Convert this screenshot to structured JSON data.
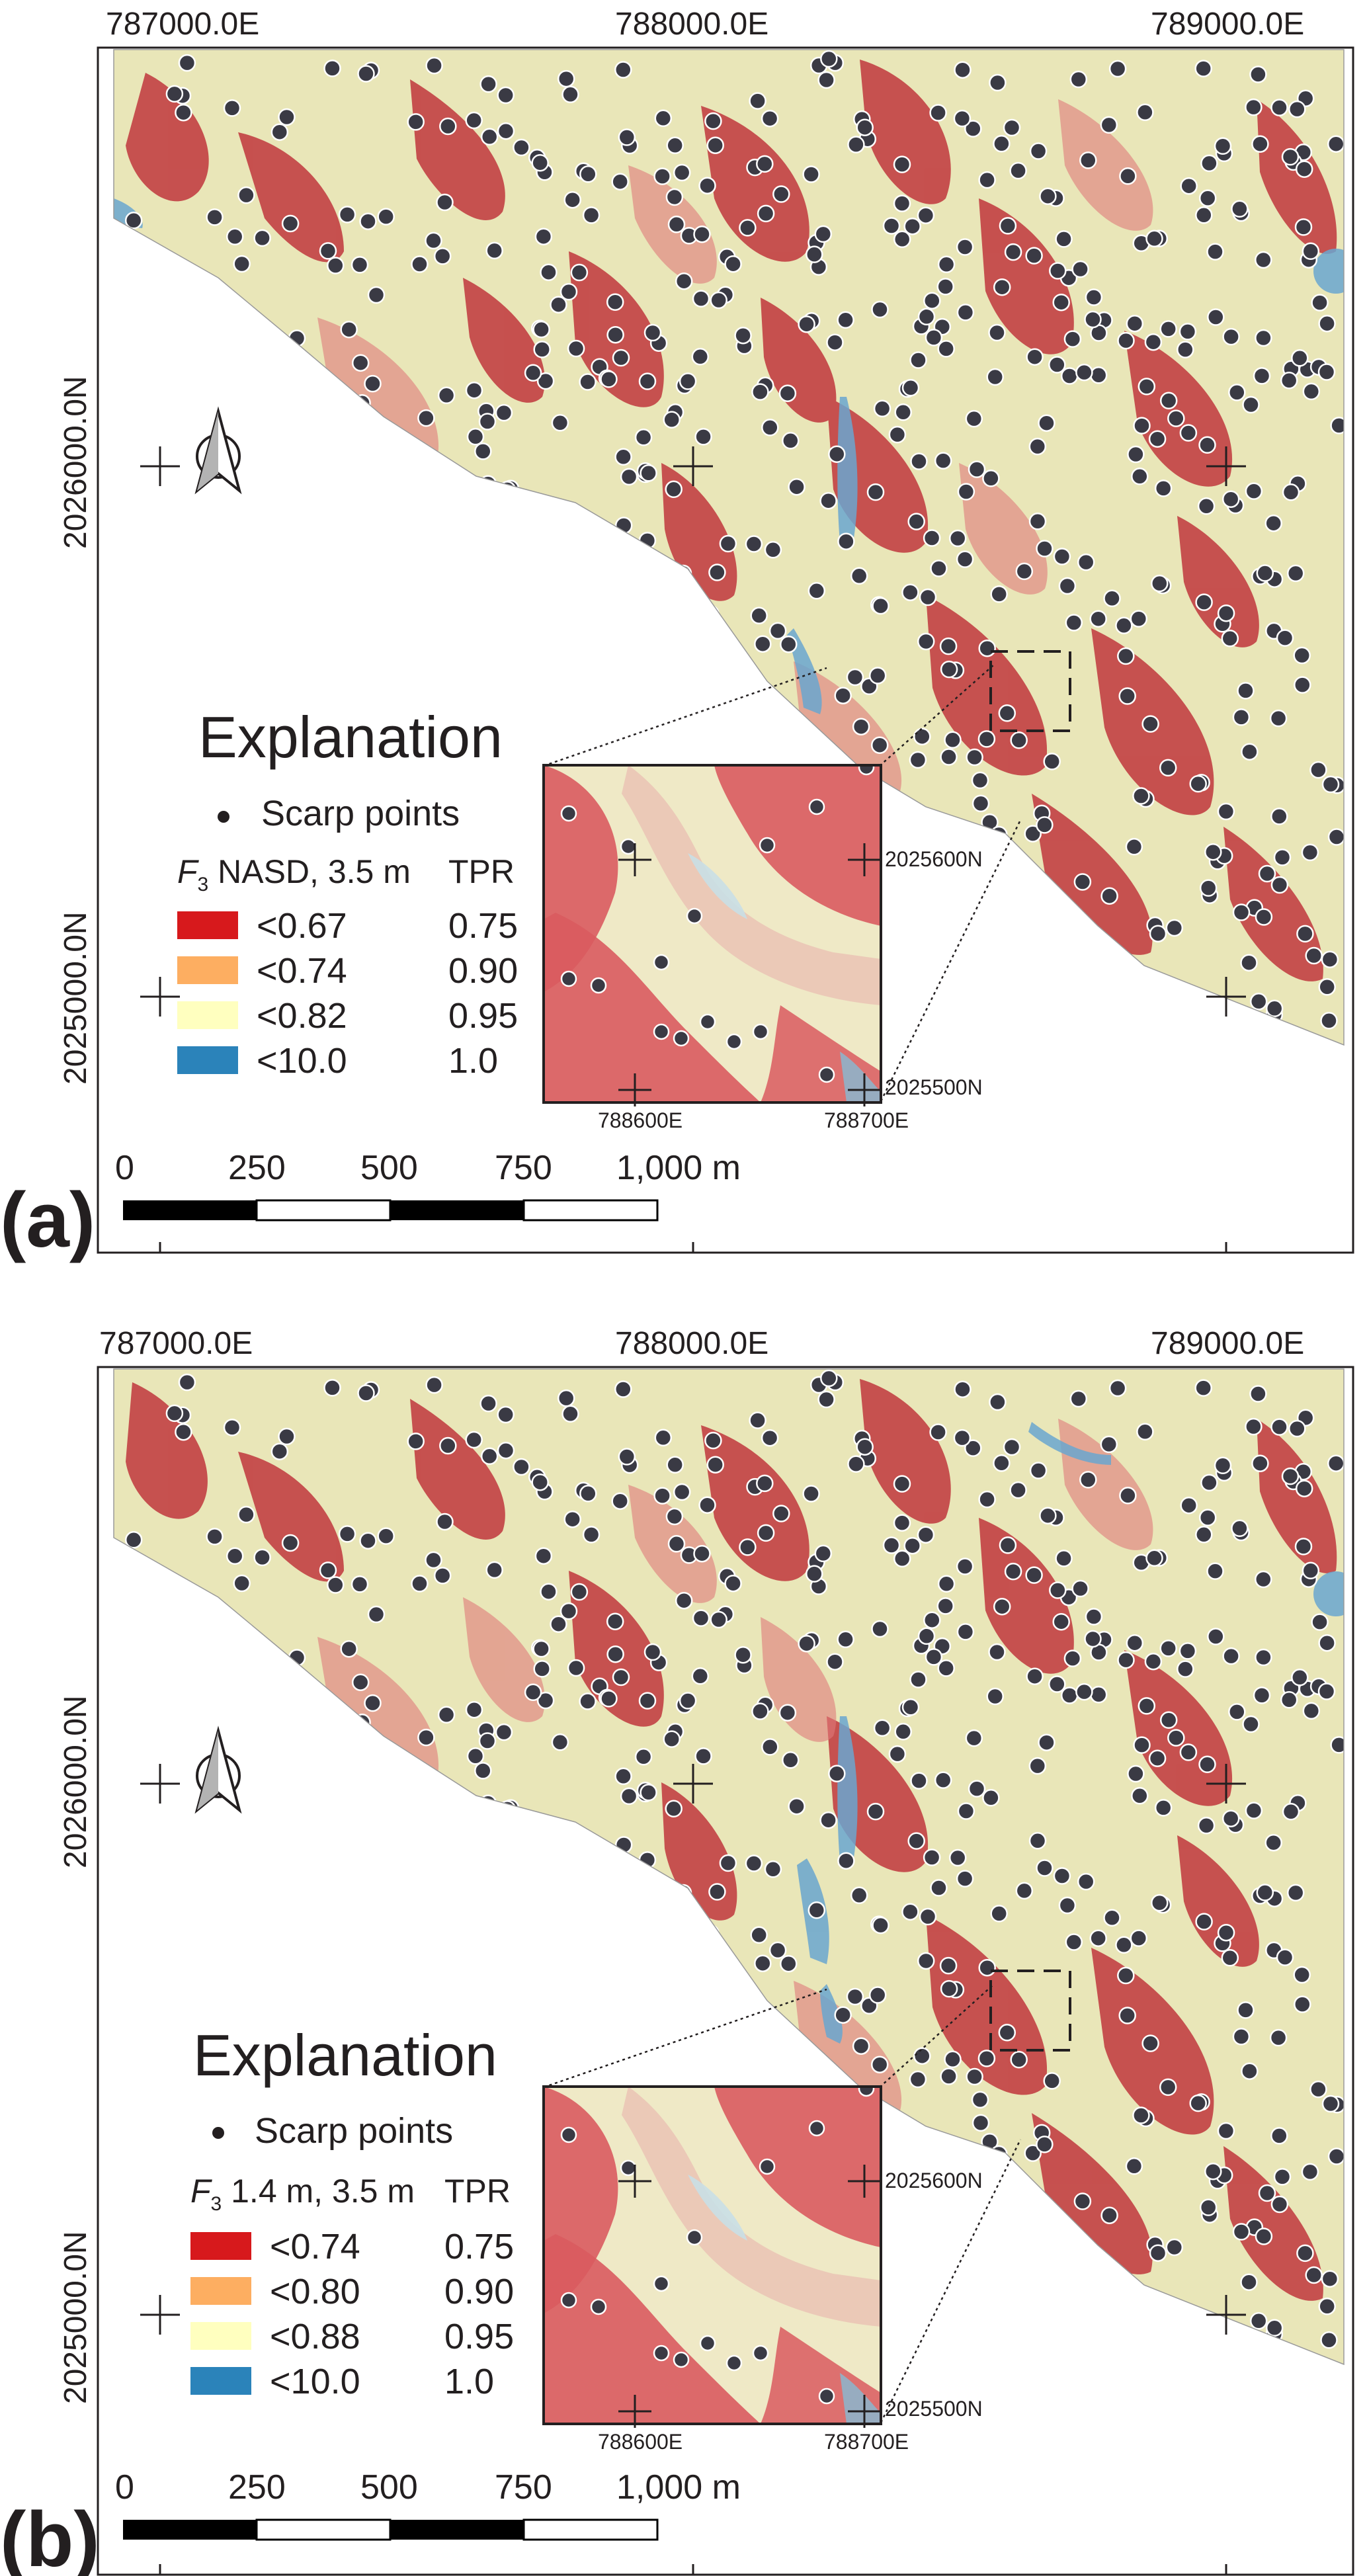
{
  "panels": [
    {
      "id": "a",
      "panel_label": "(a)",
      "top_ticks": [
        "787000.0E",
        "788000.0E",
        "789000.0E"
      ],
      "left_ticks": [
        "2026000.0N",
        "2025000.0N"
      ],
      "explanation": {
        "title": "Explanation",
        "scarp_label": "Scarp points",
        "header_f": "F",
        "header_sub": "3",
        "header_rest": " NASD, 3.5 m",
        "header_tpr": "TPR",
        "classes": [
          {
            "label": "<0.67",
            "tpr": "0.75",
            "color": "#d7191c"
          },
          {
            "label": "<0.74",
            "tpr": "0.90",
            "color": "#fdae61"
          },
          {
            "label": "<0.82",
            "tpr": "0.95",
            "color": "#ffffbf"
          },
          {
            "label": "<10.0",
            "tpr": "1.0",
            "color": "#2b83ba"
          }
        ]
      },
      "inset": {
        "x_ticks": [
          "788600E",
          "788700E"
        ],
        "y_ticks": [
          "2025600N",
          "2025500N"
        ]
      },
      "scale_bar": {
        "labels": [
          "0",
          "250",
          "500",
          "750",
          "1,000 m"
        ]
      }
    },
    {
      "id": "b",
      "panel_label": "(b)",
      "top_ticks": [
        "787000.0E",
        "788000.0E",
        "789000.0E"
      ],
      "left_ticks": [
        "2026000.0N",
        "2025000.0N"
      ],
      "explanation": {
        "title": "Explanation",
        "scarp_label": "Scarp points",
        "header_f": "F",
        "header_sub": "3",
        "header_rest": " 1.4 m, 3.5 m",
        "header_tpr": "TPR",
        "classes": [
          {
            "label": "<0.74",
            "tpr": "0.75",
            "color": "#d7191c"
          },
          {
            "label": "<0.80",
            "tpr": "0.90",
            "color": "#fdae61"
          },
          {
            "label": "<0.88",
            "tpr": "0.95",
            "color": "#ffffbf"
          },
          {
            "label": "<10.0",
            "tpr": "1.0",
            "color": "#2b83ba"
          }
        ]
      },
      "inset": {
        "x_ticks": [
          "788600E",
          "788700E"
        ],
        "y_ticks": [
          "2025600N",
          "2025500N"
        ]
      },
      "scale_bar": {
        "labels": [
          "0",
          "250",
          "500",
          "750",
          "1,000 m"
        ]
      }
    }
  ],
  "colors": {
    "map_base": "#e9e6b8",
    "susceptible_red": "#c0363c",
    "moderate_red": "#e07a7a",
    "water_blue": "#6aa6cf",
    "scarp_point": "#3a3a44",
    "frame": "#231f20"
  },
  "icons": {
    "north_arrow": "north-arrow-icon",
    "scarp_point": "scarp-point-icon"
  }
}
